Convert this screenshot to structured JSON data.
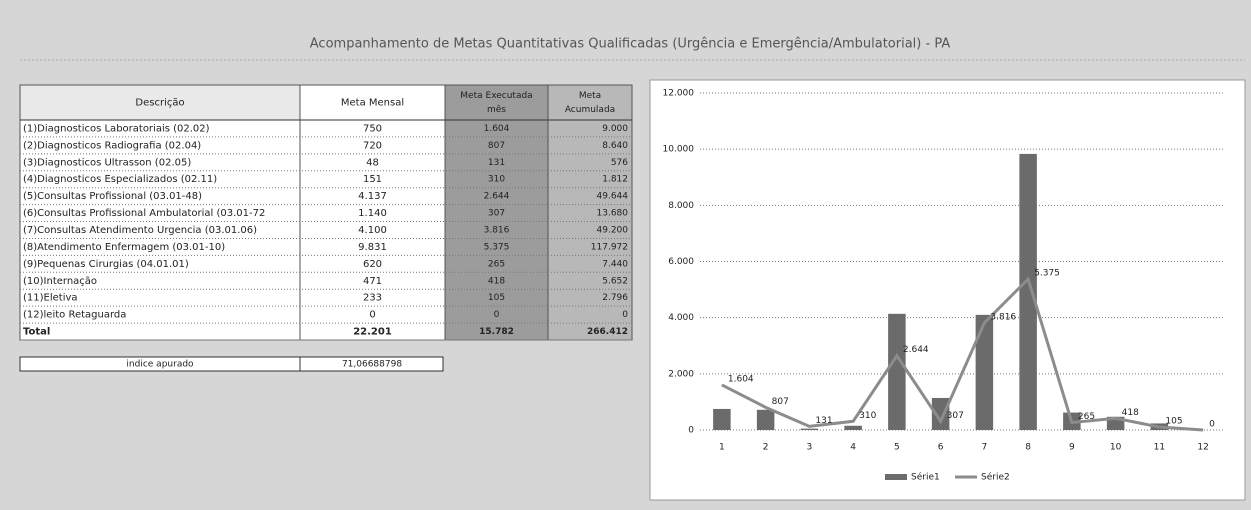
{
  "title": "Acompanhamento de Metas Quantitativas Qualificadas (Urgência e Emergência/Ambulatorial) - PA",
  "table": {
    "header": [
      [
        "Descrição"
      ],
      [
        "Meta Mensal"
      ],
      [
        "Meta Executada",
        "mês"
      ],
      [
        "Meta",
        "Acumulada"
      ]
    ],
    "rows": [
      [
        "(1)Diagnosticos Laboratoriais  (02.02)",
        "750",
        "1.604",
        "9.000"
      ],
      [
        "(2)Diagnosticos Radiografia (02.04)",
        "720",
        "807",
        "8.640"
      ],
      [
        "(3)Diagnosticos Ultrasson (02.05)",
        "48",
        "131",
        "576"
      ],
      [
        "(4)Diagnosticos Especializados (02.11)",
        "151",
        "310",
        "1.812"
      ],
      [
        "(5)Consultas Profissional (03.01-48)",
        "4.137",
        "2.644",
        "49.644"
      ],
      [
        "(6)Consultas Profissional Ambulatorial (03.01-72",
        "1.140",
        "307",
        "13.680"
      ],
      [
        "(7)Consultas Atendimento Urgencia (03.01.06)",
        "4.100",
        "3.816",
        "49.200"
      ],
      [
        "(8)Atendimento Enfermagem (03.01-10)",
        "9.831",
        "5.375",
        "117.972"
      ],
      [
        "(9)Pequenas Cirurgias (04.01.01)",
        "620",
        "265",
        "7.440"
      ],
      [
        "(10)Internação",
        "471",
        "418",
        "5.652"
      ],
      [
        "(11)Eletiva",
        "233",
        "105",
        "2.796"
      ],
      [
        "(12)leito Retaguarda",
        "0",
        "0",
        "0"
      ],
      [
        "Total",
        "22.201",
        "15.782",
        "266.412"
      ]
    ]
  },
  "indice": {
    "label": "indice apurado",
    "value": "71,06688798"
  },
  "chart_data": {
    "type": "bar_line",
    "categories": [
      "1",
      "2",
      "3",
      "4",
      "5",
      "6",
      "7",
      "8",
      "9",
      "10",
      "11",
      "12"
    ],
    "series": [
      {
        "name": "Série1",
        "type": "bar",
        "color": "#6b6b6b",
        "values": [
          750,
          720,
          48,
          151,
          4137,
          1140,
          4100,
          9831,
          620,
          471,
          233,
          0
        ]
      },
      {
        "name": "Série2",
        "type": "line",
        "color": "#8c8c8c",
        "values": [
          1604,
          807,
          131,
          310,
          2644,
          307,
          3816,
          5375,
          265,
          418,
          105,
          0
        ],
        "value_labels": [
          "1.604",
          "807",
          "131",
          "310",
          "2.644",
          "307",
          "3.816",
          "5.375",
          "265",
          "418",
          "105",
          "0"
        ]
      }
    ],
    "ylim": [
      0,
      12000
    ],
    "yticks": [
      0,
      {
        "value": 2000,
        "label": "2.000"
      },
      {
        "value": 4000,
        "label": "4.000"
      },
      {
        "value": 6000,
        "label": "6.000"
      },
      {
        "value": 8000,
        "label": "8.000"
      },
      {
        "value": 10000,
        "label": "10.000"
      },
      {
        "value": 12000,
        "label": "12.000"
      }
    ],
    "grid": true,
    "legend": "bottom"
  }
}
